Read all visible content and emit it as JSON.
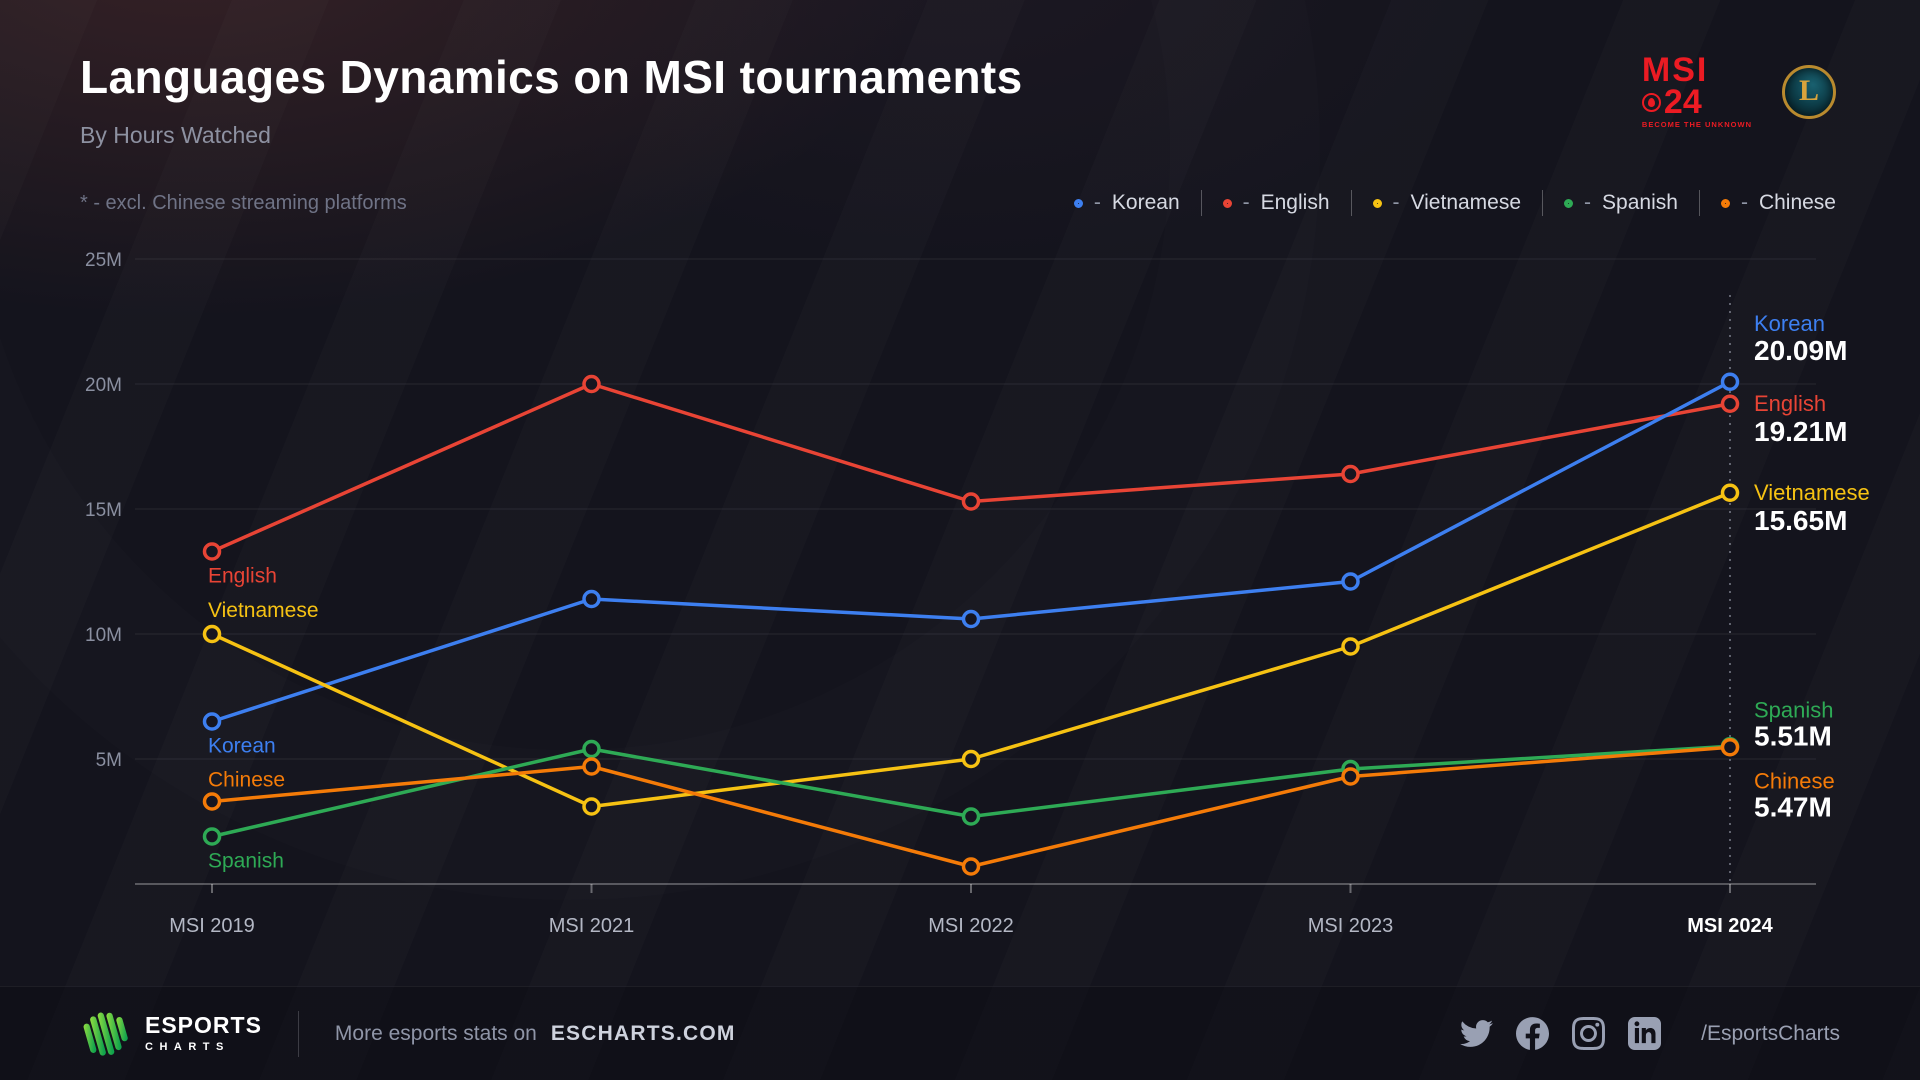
{
  "header": {
    "title": "Languages Dynamics on MSI tournaments",
    "subtitle": "By Hours Watched",
    "msi_logo": {
      "line1": "MSI",
      "line2": "24",
      "tagline": "BECOME THE UNKNOWN"
    },
    "lol_logo_letter": "L"
  },
  "note": "* - excl. Chinese streaming platforms",
  "legend_dash": "-",
  "chart_data": {
    "type": "line",
    "title": "Languages Dynamics on MSI tournaments",
    "subtitle": "By Hours Watched",
    "x_categories": [
      "MSI 2019",
      "MSI 2021",
      "MSI 2022",
      "MSI 2023",
      "MSI 2024"
    ],
    "highlight_category": "MSI 2024",
    "y_ticks": [
      25,
      20,
      15,
      10,
      5
    ],
    "y_tick_labels": [
      "25M",
      "20M",
      "15M",
      "10M",
      "5M"
    ],
    "ylim": [
      0,
      26
    ],
    "grid": "horizontal",
    "legend_position": "top-right",
    "series": [
      {
        "name": "Korean",
        "color": "#3d7ff0",
        "values": [
          6.5,
          11.4,
          10.6,
          12.1,
          20.09
        ],
        "end_label": "20.09M"
      },
      {
        "name": "English",
        "color": "#e84435",
        "values": [
          13.3,
          20.0,
          15.3,
          16.4,
          19.21
        ],
        "end_label": "19.21M"
      },
      {
        "name": "Vietnamese",
        "color": "#f6c213",
        "values": [
          10.0,
          3.1,
          5.0,
          9.5,
          15.65
        ],
        "end_label": "15.65M"
      },
      {
        "name": "Spanish",
        "color": "#2eaa55",
        "values": [
          1.9,
          5.4,
          2.7,
          4.6,
          5.51
        ],
        "end_label": "5.51M"
      },
      {
        "name": "Chinese",
        "color": "#f47b08",
        "values": [
          3.3,
          4.7,
          0.7,
          4.3,
          5.47
        ],
        "end_label": "5.47M"
      }
    ]
  },
  "footer": {
    "brand_title": "ESPORTS",
    "brand_sub": "CHARTS",
    "message": "More esports stats on",
    "site": "ESCHARTS.COM",
    "handle": "/EsportsCharts",
    "social_icons": [
      "twitter",
      "facebook",
      "instagram",
      "linkedin"
    ]
  }
}
